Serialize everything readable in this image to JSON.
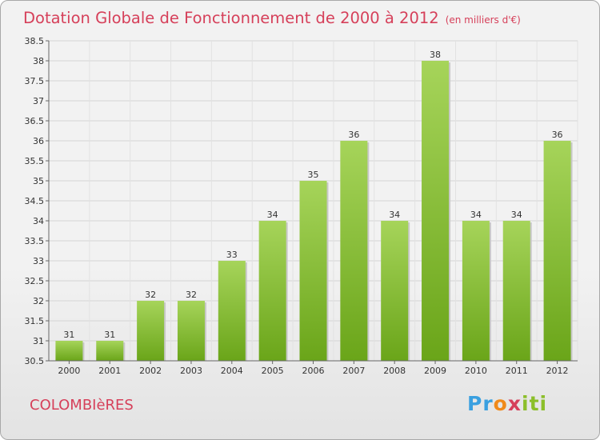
{
  "title": "Dotation Globale de Fonctionnement de 2000 à 2012",
  "unit": "(en milliers d'€)",
  "place": "COLOMBIèRES",
  "logo": [
    "P",
    "r",
    "o",
    "x",
    "i",
    "t",
    "i"
  ],
  "colors": {
    "title": "#d6405a",
    "bar_light": "#a6d45a",
    "bar_dark": "#6aa519",
    "logo": [
      "#3aa0e0",
      "#3aa0e0",
      "#f08a1a",
      "#d6405a",
      "#8cbf2a",
      "#8cbf2a",
      "#8cbf2a"
    ]
  },
  "chart_data": {
    "type": "bar",
    "title": "Dotation Globale de Fonctionnement de 2000 à 2012",
    "categories": [
      "2000",
      "2001",
      "2002",
      "2003",
      "2004",
      "2005",
      "2006",
      "2007",
      "2008",
      "2009",
      "2010",
      "2011",
      "2012"
    ],
    "values": [
      31,
      31,
      32,
      32,
      33,
      34,
      35,
      36,
      34,
      38,
      34,
      34,
      36
    ],
    "ylim": [
      30.5,
      38.5
    ],
    "yticks": [
      "30.5",
      "31",
      "31.5",
      "32",
      "32.5",
      "33",
      "33.5",
      "34",
      "34.5",
      "35",
      "35.5",
      "36",
      "36.5",
      "37",
      "37.5",
      "38",
      "38.5"
    ],
    "grid": true,
    "xlabel": "",
    "ylabel": ""
  }
}
